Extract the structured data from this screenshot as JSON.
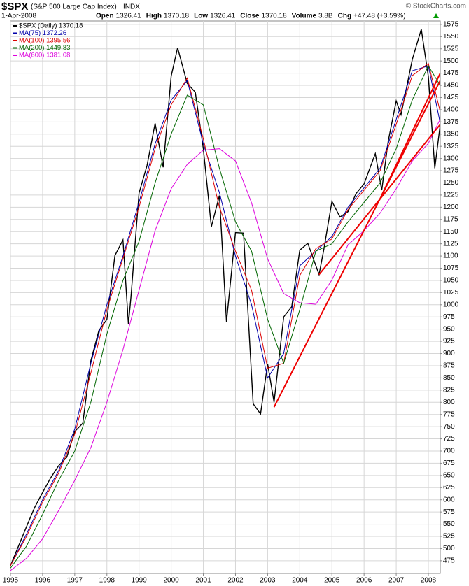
{
  "header": {
    "symbol": "$SPX",
    "subtitle": "(S&P 500 Large Cap Index)",
    "exchange": "INDX",
    "date": "1-Apr-2008",
    "credit": "© StockCharts.com",
    "quote": [
      {
        "label": "Open",
        "value": 1326.41
      },
      {
        "label": "High",
        "value": 1370.18
      },
      {
        "label": "Low",
        "value": 1326.41
      },
      {
        "label": "Close",
        "value": 1370.18
      },
      {
        "label": "Volume",
        "value": "3.8B"
      },
      {
        "label": "Chg",
        "value": "+47.48 (+3.59%)"
      }
    ]
  },
  "chart_data": {
    "type": "line",
    "xlim": [
      1995,
      2008.37
    ],
    "xticks": [
      1995,
      1996,
      1997,
      1998,
      1999,
      2000,
      2001,
      2002,
      2003,
      2004,
      2005,
      2006,
      2007,
      2008
    ],
    "ylim": [
      449,
      1582
    ],
    "yticks": [
      475,
      500,
      525,
      550,
      575,
      600,
      625,
      650,
      675,
      700,
      725,
      750,
      775,
      800,
      825,
      850,
      875,
      900,
      925,
      950,
      975,
      1000,
      1025,
      1050,
      1075,
      1100,
      1125,
      1150,
      1175,
      1200,
      1225,
      1250,
      1275,
      1300,
      1325,
      1350,
      1375,
      1400,
      1425,
      1450,
      1475,
      1500,
      1525,
      1550,
      1575
    ],
    "grid": true,
    "legend": "top-left",
    "series": [
      {
        "name": "$SPX (Daily) 1370.18",
        "color": "#000000",
        "x": [
          1995.0,
          1995.25,
          1995.5,
          1995.75,
          1996.0,
          1996.25,
          1996.5,
          1996.75,
          1997.0,
          1997.25,
          1997.5,
          1997.75,
          1998.0,
          1998.25,
          1998.5,
          1998.67,
          1998.75,
          1999.0,
          1999.25,
          1999.5,
          1999.75,
          2000.0,
          2000.2,
          2000.5,
          2000.75,
          2001.0,
          2001.25,
          2001.5,
          2001.72,
          2002.0,
          2002.25,
          2002.55,
          2002.78,
          2003.0,
          2003.2,
          2003.5,
          2003.75,
          2004.0,
          2004.25,
          2004.6,
          2004.75,
          2005.0,
          2005.25,
          2005.5,
          2005.75,
          2006.0,
          2006.35,
          2006.55,
          2006.75,
          2007.0,
          2007.15,
          2007.5,
          2007.78,
          2008.0,
          2008.2,
          2008.37
        ],
        "values": [
          465,
          505,
          545,
          584,
          615,
          645,
          670,
          687,
          740,
          757,
          885,
          947,
          970,
          1101,
          1133,
          960,
          1017,
          1229,
          1286,
          1372,
          1282,
          1469,
          1527,
          1454,
          1436,
          1320,
          1160,
          1224,
          965,
          1148,
          1147,
          797,
          776,
          879,
          800,
          975,
          996,
          1112,
          1126,
          1062,
          1114,
          1212,
          1180,
          1191,
          1228,
          1248,
          1310,
          1235,
          1335,
          1418,
          1390,
          1503,
          1565,
          1468,
          1280,
          1370
        ]
      },
      {
        "name": "MA(75) 1372.26",
        "color": "#0000aa",
        "x": [
          1995.0,
          1995.5,
          1996.0,
          1996.5,
          1997.0,
          1997.5,
          1998.0,
          1998.5,
          1999.0,
          1999.5,
          2000.0,
          2000.5,
          2001.0,
          2001.5,
          2002.0,
          2002.5,
          2003.0,
          2003.5,
          2004.0,
          2004.5,
          2005.0,
          2005.5,
          2006.0,
          2006.5,
          2007.0,
          2007.5,
          2008.0,
          2008.37
        ],
        "values": [
          465,
          530,
          600,
          660,
          745,
          880,
          1000,
          1100,
          1210,
          1330,
          1420,
          1460,
          1330,
          1230,
          1100,
          1000,
          850,
          900,
          1080,
          1110,
          1140,
          1200,
          1240,
          1280,
          1380,
          1480,
          1490,
          1372.26
        ]
      },
      {
        "name": "MA(100) 1395.56",
        "color": "#dd0000",
        "x": [
          1995.0,
          1995.5,
          1996.0,
          1996.5,
          1997.0,
          1997.5,
          1998.0,
          1998.5,
          1999.0,
          1999.5,
          2000.0,
          2000.5,
          2001.0,
          2001.5,
          2002.0,
          2002.5,
          2003.0,
          2003.5,
          2004.0,
          2004.5,
          2005.0,
          2005.5,
          2006.0,
          2006.5,
          2007.0,
          2007.5,
          2008.0,
          2008.37
        ],
        "values": [
          465,
          525,
          595,
          655,
          735,
          860,
          990,
          1095,
          1200,
          1320,
          1410,
          1465,
          1340,
          1200,
          1110,
          1030,
          870,
          880,
          1060,
          1115,
          1135,
          1195,
          1235,
          1275,
          1370,
          1470,
          1495,
          1395.56
        ]
      },
      {
        "name": "MA(200) 1449.83",
        "color": "#006600",
        "x": [
          1995.0,
          1995.5,
          1996.0,
          1996.5,
          1997.0,
          1997.5,
          1998.0,
          1998.5,
          1999.0,
          1999.5,
          2000.0,
          2000.5,
          2001.0,
          2001.5,
          2002.0,
          2002.5,
          2003.0,
          2003.5,
          2004.0,
          2004.5,
          2005.0,
          2005.5,
          2006.0,
          2006.5,
          2007.0,
          2007.5,
          2008.0,
          2008.37
        ],
        "values": [
          460,
          505,
          570,
          640,
          700,
          800,
          940,
          1050,
          1130,
          1250,
          1350,
          1430,
          1410,
          1280,
          1170,
          1110,
          970,
          880,
          990,
          1110,
          1125,
          1170,
          1210,
          1250,
          1320,
          1420,
          1490,
          1449.83
        ]
      },
      {
        "name": "MA(600) 1381.08",
        "color": "#dd00dd",
        "x": [
          1995.0,
          1995.5,
          1996.0,
          1996.5,
          1997.0,
          1997.5,
          1998.0,
          1998.5,
          1999.0,
          1999.5,
          2000.0,
          2000.5,
          2001.0,
          2001.5,
          2002.0,
          2002.5,
          2003.0,
          2003.5,
          2004.0,
          2004.5,
          2005.0,
          2005.5,
          2006.0,
          2006.5,
          2007.0,
          2007.5,
          2008.0,
          2008.37
        ],
        "values": [
          455,
          480,
          520,
          578,
          640,
          707,
          800,
          908,
          1030,
          1152,
          1238,
          1288,
          1317,
          1320,
          1295,
          1209,
          1094,
          1023,
          1004,
          1001,
          1051,
          1123,
          1152,
          1188,
          1238,
          1295,
          1331,
          1381.08
        ]
      }
    ],
    "trendlines": [
      {
        "color": "#ee0000",
        "x": [
          2003.2,
          2008.37
        ],
        "y": [
          790,
          1460
        ]
      },
      {
        "color": "#ee0000",
        "x": [
          2004.6,
          2008.37
        ],
        "y": [
          1062,
          1370
        ]
      },
      {
        "color": "#ee0000",
        "x": [
          2006.55,
          2008.37
        ],
        "y": [
          1225,
          1475
        ]
      }
    ]
  }
}
